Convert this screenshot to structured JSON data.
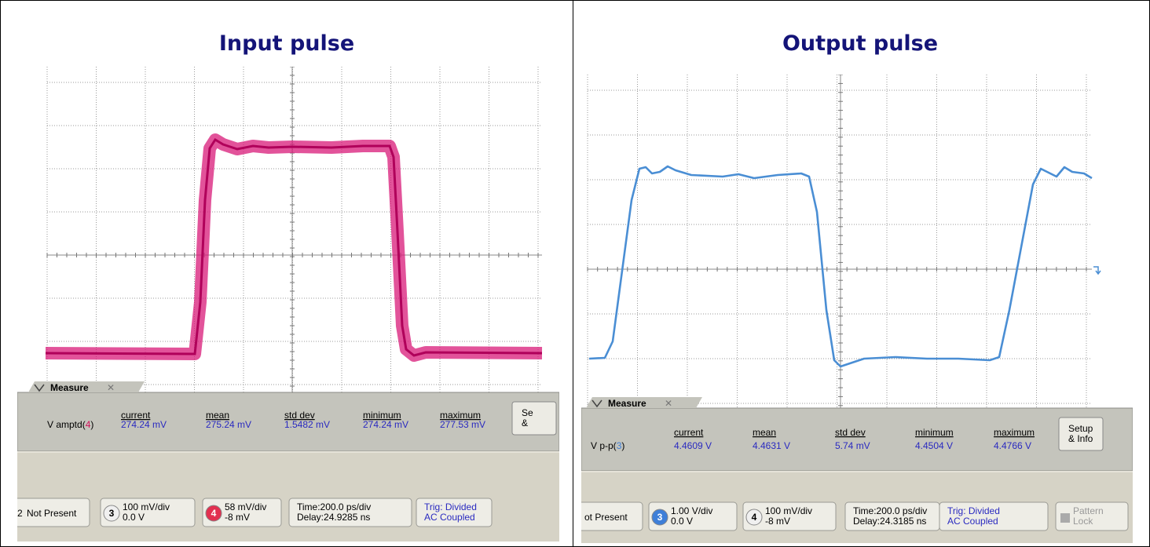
{
  "panels": [
    {
      "title": "Input pulse",
      "measure": {
        "tab": "Measure",
        "label": [
          "V amptd(",
          "4",
          ")"
        ],
        "columns": [
          {
            "name": "current",
            "value": "274.24 mV"
          },
          {
            "name": "mean",
            "value": "275.24 mV"
          },
          {
            "name": "std dev",
            "value": "1.5482 mV"
          },
          {
            "name": "minimum",
            "value": "274.24 mV"
          },
          {
            "name": "maximum",
            "value": "277.53 mV"
          }
        ]
      },
      "setup": [
        "Se",
        "&"
      ],
      "controls": {
        "not_present": {
          "channel": "2",
          "text": "Not Present"
        },
        "ch3": {
          "channel": "3",
          "scale": "100 mV/div",
          "offset": "0.0 V"
        },
        "ch4": {
          "channel": "4",
          "scale": "58 mV/div",
          "offset": "-8 mV"
        },
        "time": [
          "Time:200.0 ps/div",
          "Delay:24.9285 ns"
        ],
        "trig": [
          "Trig: Divided",
          "AC Coupled"
        ]
      }
    },
    {
      "title": "Output pulse",
      "measure": {
        "tab": "Measure",
        "label": [
          "V p-p(",
          "3",
          ")"
        ],
        "columns": [
          {
            "name": "current",
            "value": "4.4609 V"
          },
          {
            "name": "mean",
            "value": "4.4631 V"
          },
          {
            "name": "std dev",
            "value": "5.74 mV"
          },
          {
            "name": "minimum",
            "value": "4.4504 V"
          },
          {
            "name": "maximum",
            "value": "4.4766 V"
          }
        ]
      },
      "setup": [
        "Setup",
        "& Info"
      ],
      "controls": {
        "not_present": {
          "text": "ot Present"
        },
        "ch3": {
          "channel": "3",
          "scale": "1.00 V/div",
          "offset": "0.0 V"
        },
        "ch4": {
          "channel": "4",
          "scale": "100 mV/div",
          "offset": "-8 mV"
        },
        "time": [
          "Time:200.0 ps/div",
          "Delay:24.3185 ns"
        ],
        "trig": [
          "Trig: Divided",
          "AC Coupled"
        ],
        "lock": [
          "Pattern",
          "Lock"
        ]
      }
    }
  ]
}
